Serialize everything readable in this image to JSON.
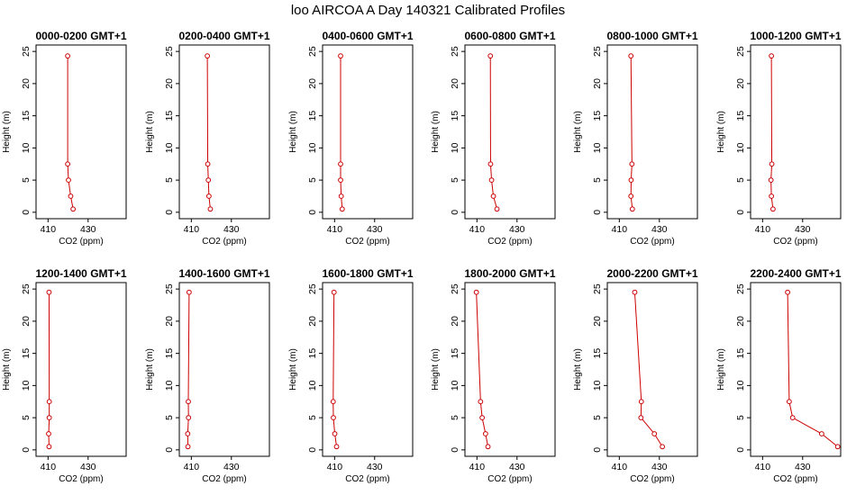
{
  "title": "loo AIRCOA A  Day 140321  Calibrated Profiles",
  "colors": {
    "series": "#cc0000",
    "axis": "#000000",
    "background": "#ffffff"
  },
  "chart_data": [
    {
      "type": "line",
      "title": "0000-0200 GMT+1",
      "xlabel": "CO2 (ppm)",
      "ylabel": "Height (m)",
      "xlim": [
        404,
        449
      ],
      "ylim": [
        -1,
        26
      ],
      "xticks": [
        410,
        430
      ],
      "yticks": [
        0,
        5,
        10,
        15,
        20,
        25
      ],
      "grid": false,
      "x": [
        422.5,
        421.3,
        420.2,
        419.8,
        419.8
      ],
      "y": [
        0.5,
        2.5,
        5,
        7.5,
        24.3
      ]
    },
    {
      "type": "line",
      "title": "0200-0400 GMT+1",
      "xlabel": "CO2 (ppm)",
      "ylabel": "Height (m)",
      "xlim": [
        404,
        449
      ],
      "ylim": [
        -1,
        26
      ],
      "xticks": [
        410,
        430
      ],
      "yticks": [
        0,
        5,
        10,
        15,
        20,
        25
      ],
      "grid": false,
      "x": [
        419.5,
        418.8,
        418.5,
        418.2,
        418.0
      ],
      "y": [
        0.5,
        2.5,
        5,
        7.5,
        24.3
      ]
    },
    {
      "type": "line",
      "title": "0400-0600 GMT+1",
      "xlabel": "CO2 (ppm)",
      "ylabel": "Height (m)",
      "xlim": [
        404,
        449
      ],
      "ylim": [
        -1,
        26
      ],
      "xticks": [
        410,
        430
      ],
      "yticks": [
        0,
        5,
        10,
        15,
        20,
        25
      ],
      "grid": false,
      "x": [
        413.8,
        413.3,
        413.0,
        413.0,
        413.0
      ],
      "y": [
        0.5,
        2.5,
        5,
        7.5,
        24.3
      ]
    },
    {
      "type": "line",
      "title": "0600-0800 GMT+1",
      "xlabel": "CO2 (ppm)",
      "ylabel": "Height (m)",
      "xlim": [
        404,
        449
      ],
      "ylim": [
        -1,
        26
      ],
      "xticks": [
        410,
        430
      ],
      "yticks": [
        0,
        5,
        10,
        15,
        20,
        25
      ],
      "grid": false,
      "x": [
        420.0,
        418.2,
        417.3,
        416.8,
        416.7
      ],
      "y": [
        0.5,
        2.5,
        5,
        7.5,
        24.3
      ]
    },
    {
      "type": "line",
      "title": "0800-1000 GMT+1",
      "xlabel": "CO2 (ppm)",
      "ylabel": "Height (m)",
      "xlim": [
        404,
        449
      ],
      "ylim": [
        -1,
        26
      ],
      "xticks": [
        410,
        430
      ],
      "yticks": [
        0,
        5,
        10,
        15,
        20,
        25
      ],
      "grid": false,
      "x": [
        416.5,
        415.8,
        415.9,
        416.3,
        415.8
      ],
      "y": [
        0.5,
        2.5,
        5,
        7.5,
        24.3
      ]
    },
    {
      "type": "line",
      "title": "1000-1200 GMT+1",
      "xlabel": "CO2 (ppm)",
      "ylabel": "Height (m)",
      "xlim": [
        404,
        449
      ],
      "ylim": [
        -1,
        26
      ],
      "xticks": [
        410,
        430
      ],
      "yticks": [
        0,
        5,
        10,
        15,
        20,
        25
      ],
      "grid": false,
      "x": [
        415.2,
        414.4,
        414.2,
        414.6,
        414.4
      ],
      "y": [
        0.5,
        2.5,
        5,
        7.5,
        24.3
      ]
    },
    {
      "type": "line",
      "title": "1200-1400 GMT+1",
      "xlabel": "CO2 (ppm)",
      "ylabel": "Height (m)",
      "xlim": [
        404,
        449
      ],
      "ylim": [
        -1,
        26
      ],
      "xticks": [
        410,
        430
      ],
      "yticks": [
        0,
        5,
        10,
        15,
        20,
        25
      ],
      "grid": false,
      "x": [
        410.5,
        410.3,
        410.6,
        410.6,
        410.5
      ],
      "y": [
        0.5,
        2.5,
        5,
        7.5,
        24.5
      ]
    },
    {
      "type": "line",
      "title": "1400-1600 GMT+1",
      "xlabel": "CO2 (ppm)",
      "ylabel": "Height (m)",
      "xlim": [
        404,
        449
      ],
      "ylim": [
        -1,
        26
      ],
      "xticks": [
        410,
        430
      ],
      "yticks": [
        0,
        5,
        10,
        15,
        20,
        25
      ],
      "grid": false,
      "x": [
        408.3,
        408.2,
        408.6,
        408.5,
        408.9
      ],
      "y": [
        0.5,
        2.5,
        5,
        7.5,
        24.5
      ]
    },
    {
      "type": "line",
      "title": "1600-1800 GMT+1",
      "xlabel": "CO2 (ppm)",
      "ylabel": "Height (m)",
      "xlim": [
        404,
        449
      ],
      "ylim": [
        -1,
        26
      ],
      "xticks": [
        410,
        430
      ],
      "yticks": [
        0,
        5,
        10,
        15,
        20,
        25
      ],
      "grid": false,
      "x": [
        411.0,
        410.1,
        409.4,
        409.3,
        409.7
      ],
      "y": [
        0.5,
        2.5,
        5,
        7.5,
        24.5
      ]
    },
    {
      "type": "line",
      "title": "1800-2000 GMT+1",
      "xlabel": "CO2 (ppm)",
      "ylabel": "Height (m)",
      "xlim": [
        404,
        449
      ],
      "ylim": [
        -1,
        26
      ],
      "xticks": [
        410,
        430
      ],
      "yticks": [
        0,
        5,
        10,
        15,
        20,
        25
      ],
      "grid": false,
      "x": [
        415.5,
        414.3,
        412.6,
        411.8,
        409.7
      ],
      "y": [
        0.5,
        2.5,
        5,
        7.5,
        24.5
      ]
    },
    {
      "type": "line",
      "title": "2000-2200 GMT+1",
      "xlabel": "CO2 (ppm)",
      "ylabel": "Height (m)",
      "xlim": [
        404,
        449
      ],
      "ylim": [
        -1,
        26
      ],
      "xticks": [
        410,
        430
      ],
      "yticks": [
        0,
        5,
        10,
        15,
        20,
        25
      ],
      "grid": false,
      "x": [
        431.5,
        427.5,
        420.8,
        421.0,
        417.7
      ],
      "y": [
        0.5,
        2.5,
        5,
        7.5,
        24.5
      ]
    },
    {
      "type": "line",
      "title": "2200-2400 GMT+1",
      "xlabel": "CO2 (ppm)",
      "ylabel": "Height (m)",
      "xlim": [
        404,
        449
      ],
      "ylim": [
        -1,
        26
      ],
      "xticks": [
        410,
        430
      ],
      "yticks": [
        0,
        5,
        10,
        15,
        20,
        25
      ],
      "grid": false,
      "x": [
        447.5,
        439.5,
        425.0,
        423.3,
        422.5
      ],
      "y": [
        0.5,
        2.5,
        5,
        7.5,
        24.5
      ]
    }
  ]
}
